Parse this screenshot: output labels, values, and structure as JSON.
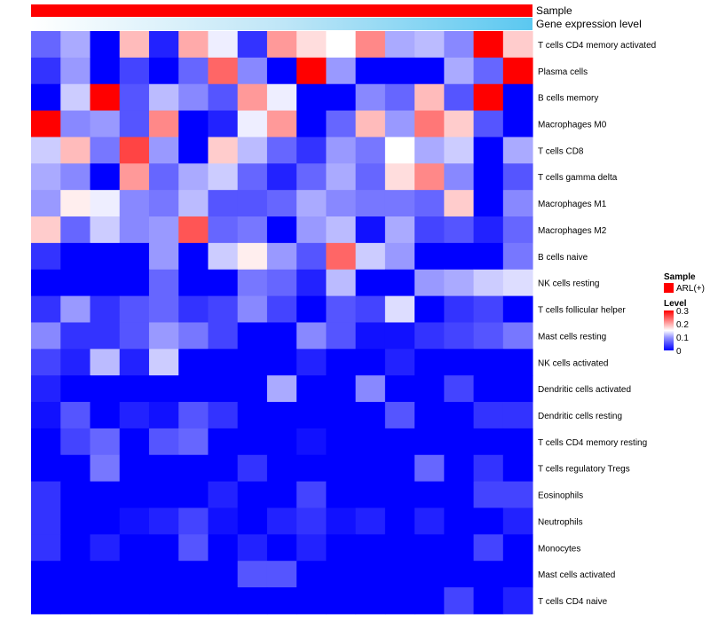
{
  "chart_data": {
    "type": "heatmap",
    "title": "",
    "annotation_tracks": [
      {
        "label": "Sample",
        "value_label": "ARL(+)",
        "color": "#ff0000"
      },
      {
        "label": "Gene expression level",
        "gradient": [
          "#ffffff",
          "#bfe6f7",
          "#5bc8f0"
        ]
      }
    ],
    "legend": {
      "sample_title": "Sample",
      "sample_entry": "ARL(+)",
      "sample_color": "#ff0000",
      "level_title": "Level",
      "level_ticks": [
        "0.3",
        "0.2",
        "0.1",
        "0"
      ],
      "level_range": [
        0,
        0.3
      ],
      "colors": {
        "low": "#0000ff",
        "mid": "#ffffff",
        "high": "#ff0000"
      }
    },
    "rows": [
      "T cells CD4 memory activated",
      "Plasma cells",
      "B cells memory",
      "Macrophages M0",
      "T cells CD8",
      "T cells gamma delta",
      "Macrophages M1",
      "Macrophages M2",
      "B cells naive",
      "NK cells resting",
      "T cells follicular helper",
      "Mast cells resting",
      "NK cells activated",
      "Dendritic cells activated",
      "Dendritic cells resting",
      "T cells CD4 memory resting",
      "T cells regulatory  Tregs",
      "Eosinophils",
      "Neutrophils",
      "Monocytes",
      "Mast cells activated",
      "T cells CD4 naive"
    ],
    "columns": 17,
    "values": [
      [
        0.06,
        0.1,
        0.0,
        0.19,
        0.02,
        0.2,
        0.14,
        0.03,
        0.21,
        0.17,
        0.15,
        0.22,
        0.1,
        0.11,
        0.08,
        0.3,
        0.18
      ],
      [
        0.03,
        0.09,
        0.0,
        0.04,
        0.0,
        0.06,
        0.24,
        0.08,
        0.0,
        0.3,
        0.09,
        0.0,
        0.0,
        0.0,
        0.1,
        0.06,
        0.3
      ],
      [
        0.0,
        0.12,
        0.3,
        0.05,
        0.11,
        0.08,
        0.05,
        0.21,
        0.14,
        0.0,
        0.0,
        0.08,
        0.06,
        0.19,
        0.05,
        0.3,
        0.0
      ],
      [
        0.3,
        0.08,
        0.09,
        0.05,
        0.22,
        0.0,
        0.02,
        0.14,
        0.21,
        0.0,
        0.06,
        0.19,
        0.09,
        0.23,
        0.18,
        0.05,
        0.0
      ],
      [
        0.12,
        0.19,
        0.07,
        0.26,
        0.09,
        0.0,
        0.18,
        0.11,
        0.06,
        0.03,
        0.09,
        0.07,
        0.15,
        0.1,
        0.12,
        0.0,
        0.1
      ],
      [
        0.1,
        0.08,
        0.0,
        0.21,
        0.06,
        0.1,
        0.12,
        0.06,
        0.02,
        0.06,
        0.1,
        0.06,
        0.17,
        0.22,
        0.08,
        0.0,
        0.05
      ],
      [
        0.09,
        0.16,
        0.14,
        0.08,
        0.07,
        0.11,
        0.05,
        0.05,
        0.06,
        0.1,
        0.08,
        0.07,
        0.07,
        0.06,
        0.18,
        0.0,
        0.08
      ],
      [
        0.18,
        0.06,
        0.12,
        0.08,
        0.09,
        0.25,
        0.06,
        0.07,
        0.0,
        0.09,
        0.11,
        0.01,
        0.1,
        0.04,
        0.05,
        0.02,
        0.06
      ],
      [
        0.03,
        0.0,
        0.0,
        0.0,
        0.09,
        0.0,
        0.12,
        0.16,
        0.09,
        0.05,
        0.24,
        0.12,
        0.09,
        0.0,
        0.0,
        0.0,
        0.07
      ],
      [
        0.0,
        0.0,
        0.0,
        0.0,
        0.06,
        0.0,
        0.0,
        0.07,
        0.06,
        0.02,
        0.11,
        0.0,
        0.0,
        0.09,
        0.1,
        0.12,
        0.13
      ],
      [
        0.03,
        0.09,
        0.03,
        0.05,
        0.06,
        0.03,
        0.04,
        0.08,
        0.04,
        0.0,
        0.05,
        0.04,
        0.13,
        0.0,
        0.03,
        0.04,
        0.0
      ],
      [
        0.08,
        0.03,
        0.03,
        0.05,
        0.09,
        0.07,
        0.04,
        0.0,
        0.0,
        0.08,
        0.05,
        0.01,
        0.01,
        0.03,
        0.04,
        0.05,
        0.07
      ],
      [
        0.04,
        0.02,
        0.11,
        0.02,
        0.12,
        0.0,
        0.0,
        0.0,
        0.0,
        0.02,
        0.0,
        0.0,
        0.02,
        0.0,
        0.0,
        0.0,
        0.0
      ],
      [
        0.02,
        0.0,
        0.0,
        0.0,
        0.0,
        0.0,
        0.0,
        0.0,
        0.1,
        0.0,
        0.0,
        0.08,
        0.0,
        0.0,
        0.04,
        0.0,
        0.0
      ],
      [
        0.01,
        0.05,
        0.0,
        0.02,
        0.01,
        0.05,
        0.03,
        0.0,
        0.0,
        0.0,
        0.0,
        0.0,
        0.05,
        0.0,
        0.0,
        0.03,
        0.03
      ],
      [
        0.0,
        0.04,
        0.06,
        0.0,
        0.05,
        0.06,
        0.0,
        0.0,
        0.0,
        0.01,
        0.0,
        0.0,
        0.0,
        0.0,
        0.0,
        0.0,
        0.0
      ],
      [
        0.0,
        0.0,
        0.07,
        0.0,
        0.0,
        0.0,
        0.0,
        0.03,
        0.0,
        0.0,
        0.0,
        0.0,
        0.0,
        0.06,
        0.0,
        0.03,
        0.0
      ],
      [
        0.03,
        0.0,
        0.0,
        0.0,
        0.0,
        0.0,
        0.02,
        0.0,
        0.0,
        0.04,
        0.0,
        0.0,
        0.0,
        0.0,
        0.0,
        0.04,
        0.04
      ],
      [
        0.03,
        0.0,
        0.0,
        0.01,
        0.02,
        0.04,
        0.01,
        0.0,
        0.02,
        0.03,
        0.01,
        0.02,
        0.0,
        0.02,
        0.0,
        0.0,
        0.02
      ],
      [
        0.03,
        0.0,
        0.02,
        0.0,
        0.0,
        0.05,
        0.0,
        0.02,
        0.0,
        0.02,
        0.0,
        0.0,
        0.0,
        0.0,
        0.0,
        0.04,
        0.0
      ],
      [
        0.0,
        0.0,
        0.0,
        0.0,
        0.0,
        0.0,
        0.0,
        0.05,
        0.05,
        0.0,
        0.0,
        0.0,
        0.0,
        0.0,
        0.0,
        0.0,
        0.0
      ],
      [
        0.0,
        0.0,
        0.0,
        0.0,
        0.0,
        0.0,
        0.0,
        0.0,
        0.0,
        0.0,
        0.0,
        0.0,
        0.0,
        0.0,
        0.04,
        0.0,
        0.02
      ]
    ]
  }
}
